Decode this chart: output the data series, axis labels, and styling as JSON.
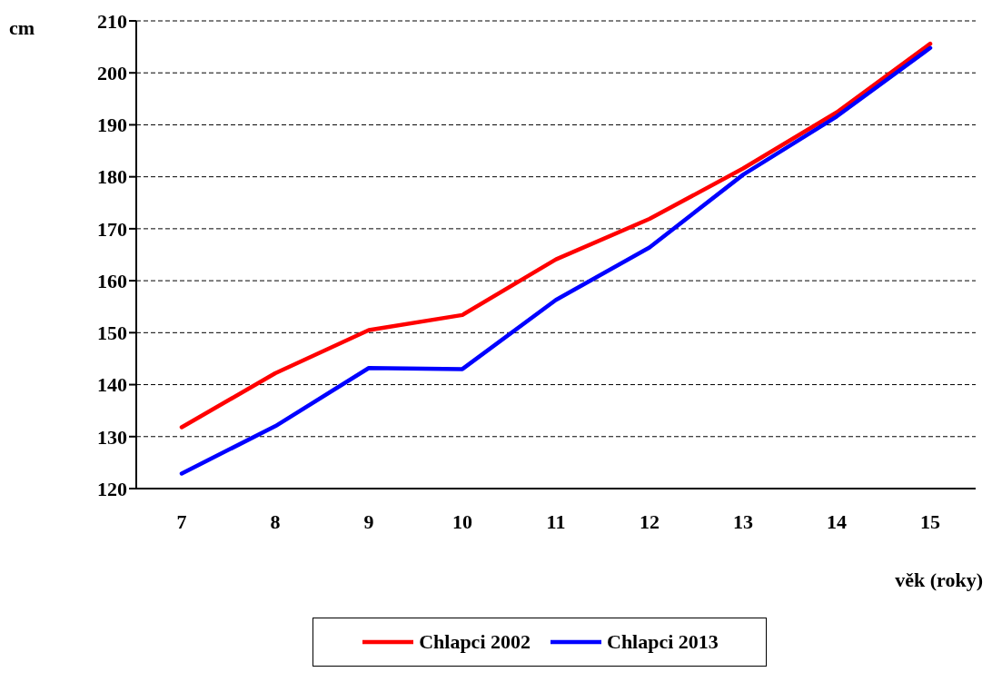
{
  "chart_data": {
    "type": "line",
    "xlabel": "věk (roky)",
    "ylabel": "cm",
    "categories": [
      "7",
      "8",
      "9",
      "10",
      "11",
      "12",
      "13",
      "14",
      "15"
    ],
    "series": [
      {
        "name": "Chlapci 2002",
        "color": "#ff0000",
        "values": [
          131.8,
          142.2,
          150.5,
          153.4,
          164.1,
          171.9,
          181.6,
          192.4,
          205.6
        ]
      },
      {
        "name": "Chlapci 2013",
        "color": "#0000ff",
        "values": [
          122.9,
          132.0,
          143.2,
          143.0,
          156.3,
          166.4,
          180.4,
          191.6,
          204.8
        ]
      }
    ],
    "ylim": [
      120,
      210
    ],
    "yticks": [
      120,
      130,
      140,
      150,
      160,
      170,
      180,
      190,
      200,
      210
    ],
    "grid": "y",
    "legend": "bottom",
    "marker": "none",
    "line_style": "solid"
  }
}
